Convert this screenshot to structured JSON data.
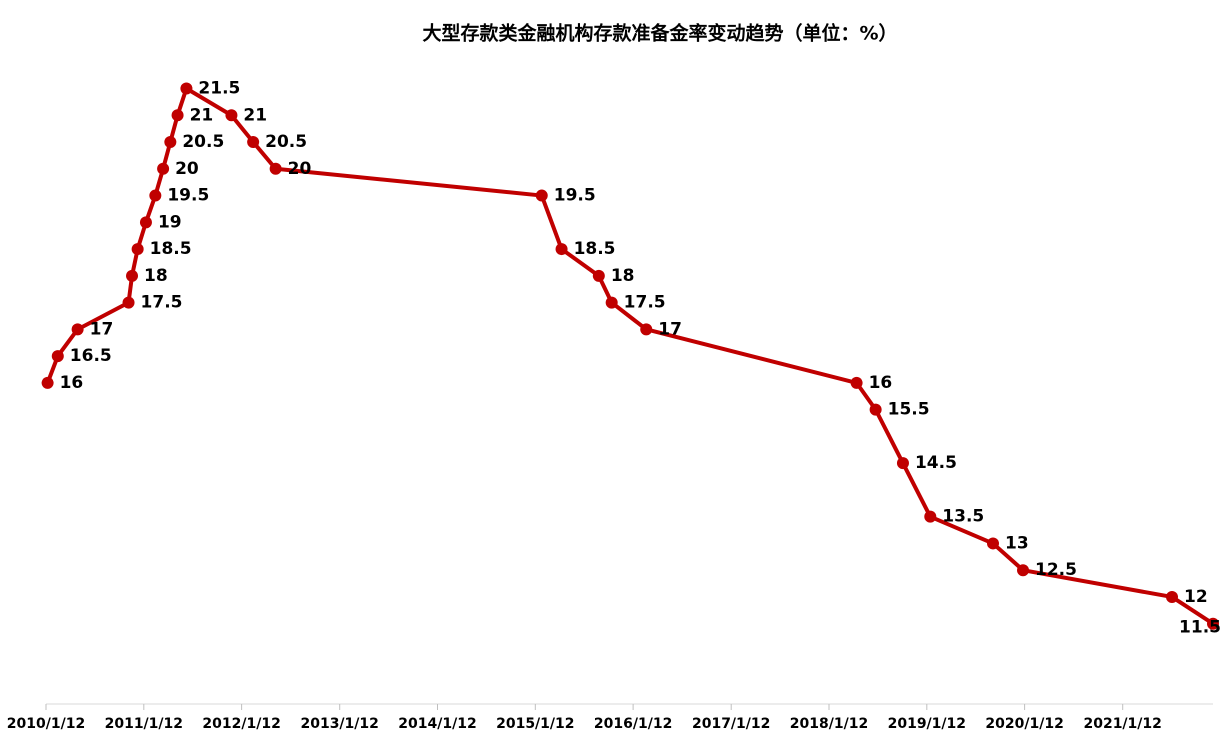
{
  "chart_data": {
    "type": "line",
    "title": "大型存款类金融机构存款准备金率变动趋势（单位：%）",
    "x": [
      "2010/1/18",
      "2010/2/25",
      "2010/5/10",
      "2010/11/16",
      "2010/11/29",
      "2010/12/20",
      "2011/1/20",
      "2011/2/24",
      "2011/3/25",
      "2011/4/21",
      "2011/5/18",
      "2011/6/20",
      "2011/12/5",
      "2012/2/24",
      "2012/5/18",
      "2015/2/5",
      "2015/4/20",
      "2015/9/6",
      "2015/10/24",
      "2016/3/1",
      "2018/4/25",
      "2018/7/5",
      "2018/10/15",
      "2019/1/25",
      "2019/9/16",
      "2020/1/6",
      "2021/7/15",
      "2021/12/15"
    ],
    "series": [
      {
        "color": "#c00000",
        "values": [
          16,
          16.5,
          17,
          17.5,
          18,
          18.5,
          19,
          19.5,
          20,
          20.5,
          21,
          21.5,
          21,
          20.5,
          20,
          19.5,
          18.5,
          18,
          17.5,
          17,
          16,
          15.5,
          14.5,
          13.5,
          13,
          12.5,
          12,
          11.5
        ]
      }
    ],
    "xlim": [
      "2010/1/12",
      "2021/12/15"
    ],
    "xticks": [
      "2010/1/12",
      "2011/1/12",
      "2012/1/12",
      "2013/1/12",
      "2014/1/12",
      "2015/1/12",
      "2016/1/12",
      "2017/1/12",
      "2018/1/12",
      "2019/1/12",
      "2020/1/12",
      "2021/1/12"
    ],
    "ylim": [
      10,
      22.5
    ]
  }
}
